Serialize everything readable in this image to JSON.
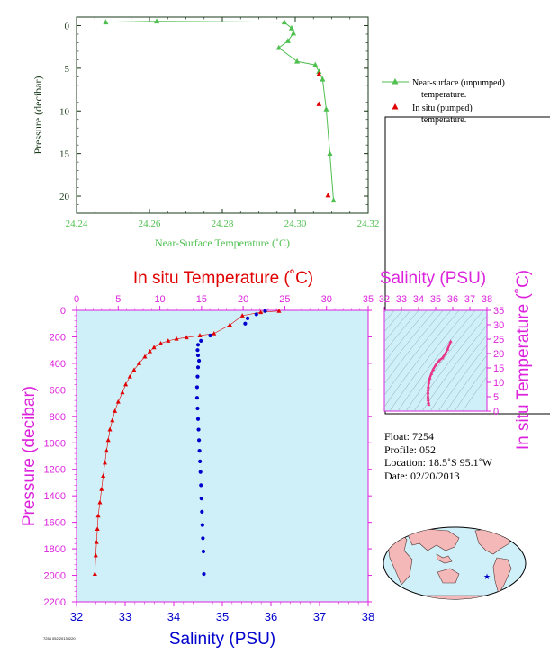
{
  "colors": {
    "near_surface": "#4fbf4f",
    "in_situ": "#e00000",
    "salinity": "#0000cc",
    "magenta": "#dd22dd",
    "panel_bg": "#cff0f8"
  },
  "legend": {
    "near_surface": [
      "Near-surface (unpumped)",
      "temperature."
    ],
    "in_situ": [
      "In situ (pumped)",
      "temperature."
    ]
  },
  "info": {
    "float": "Float:  7254",
    "profile": "Profile:  052",
    "location": "Location:  18.5˚S  95.1˚W",
    "date": "Date:  02/20/2013"
  },
  "footer_caption": "7254 052 20130220",
  "chart_data": [
    {
      "type": "line",
      "xlabel": "Near-Surface Temperature (˚C)",
      "ylabel": "Pressure (decibar)",
      "xlim": [
        24.24,
        24.32
      ],
      "ylim": [
        22,
        -1
      ],
      "xticks": [
        "24.24",
        "24.26",
        "24.28",
        "24.30",
        "24.32"
      ],
      "yticks": [
        "0",
        "5",
        "10",
        "15",
        "20"
      ],
      "series": [
        {
          "name": "Near-surface (unpumped) temperature.",
          "x": [
            24.248,
            24.262,
            24.297,
            24.299,
            24.2995,
            24.298,
            24.2955,
            24.3005,
            24.3055,
            24.3065,
            24.3075,
            24.3085,
            24.3095,
            24.3105
          ],
          "y": [
            -0.4,
            -0.5,
            -0.4,
            0.3,
            0.9,
            1.8,
            2.6,
            4.2,
            4.6,
            5.4,
            6.3,
            9.8,
            15.0,
            20.5
          ]
        },
        {
          "name": "In situ (pumped) temperature.",
          "x": [
            24.3065,
            24.3065,
            24.309
          ],
          "y": [
            5.7,
            9.2,
            19.9
          ]
        }
      ]
    },
    {
      "type": "scatter",
      "title_top": "In situ Temperature (˚C)",
      "xlabel_bottom": "Salinity (PSU)",
      "ylabel": "Pressure (decibar)",
      "temp_lim": [
        0,
        35
      ],
      "sal_lim": [
        32,
        38
      ],
      "ylim": [
        2200,
        0
      ],
      "temp_ticks": [
        "0",
        "5",
        "10",
        "15",
        "20",
        "25",
        "30",
        "35"
      ],
      "sal_ticks": [
        "32",
        "33",
        "34",
        "35",
        "36",
        "37",
        "38"
      ],
      "yticks": [
        "0",
        "200",
        "400",
        "600",
        "800",
        "1000",
        "1200",
        "1400",
        "1600",
        "1800",
        "2000",
        "2200"
      ],
      "series": [
        {
          "name": "In situ temperature",
          "x": [
            24.3,
            22.1,
            19.9,
            18.4,
            16.5,
            14.8,
            13.2,
            12.0,
            11.0,
            10.1,
            9.3,
            8.8,
            8.2,
            7.5,
            6.9,
            6.4,
            5.9,
            5.5,
            5.0,
            4.6,
            4.3,
            4.0,
            3.8,
            3.6,
            3.4,
            3.2,
            3.0,
            2.8,
            2.6,
            2.5,
            2.4,
            2.3,
            2.2
          ],
          "y": [
            5,
            15,
            40,
            110,
            175,
            190,
            205,
            215,
            230,
            250,
            280,
            310,
            350,
            400,
            450,
            500,
            560,
            620,
            690,
            760,
            830,
            900,
            980,
            1060,
            1150,
            1250,
            1350,
            1450,
            1550,
            1650,
            1750,
            1850,
            1990
          ]
        },
        {
          "name": "Salinity",
          "x": [
            35.88,
            35.7,
            35.52,
            35.47,
            34.75,
            34.56,
            34.5,
            34.49,
            34.5,
            34.52,
            34.5,
            34.49,
            34.48,
            34.48,
            34.49,
            34.5,
            34.51,
            34.52,
            34.53,
            34.54,
            34.55,
            34.56,
            34.57,
            34.58,
            34.59,
            34.6,
            34.61,
            34.62
          ],
          "y": [
            5,
            30,
            60,
            100,
            190,
            230,
            260,
            300,
            340,
            380,
            430,
            500,
            580,
            660,
            740,
            820,
            900,
            980,
            1060,
            1140,
            1220,
            1320,
            1420,
            1520,
            1620,
            1720,
            1820,
            1990
          ]
        }
      ]
    },
    {
      "type": "scatter",
      "title": "Salinity (PSU)",
      "ylabel_right": "In situ Temperature (˚C)",
      "xlim": [
        32,
        38
      ],
      "ylim": [
        0,
        35
      ],
      "xticks": [
        "32",
        "33",
        "34",
        "35",
        "36",
        "37",
        "38"
      ],
      "yticks": [
        "0",
        "5",
        "10",
        "15",
        "20",
        "25",
        "30",
        "35"
      ],
      "series": [
        {
          "name": "T-S profile",
          "x": [
            34.6,
            34.58,
            34.56,
            34.55,
            34.55,
            34.56,
            34.57,
            34.6,
            34.66,
            34.75,
            34.85,
            35.0,
            35.2,
            35.4,
            35.55,
            35.7,
            35.88
          ],
          "y": [
            2.3,
            3.0,
            4.0,
            5.0,
            6.5,
            7.5,
            8.5,
            10.0,
            11.5,
            13.0,
            14.5,
            16.0,
            17.5,
            18.5,
            19.8,
            21.5,
            24.2
          ]
        }
      ]
    }
  ]
}
